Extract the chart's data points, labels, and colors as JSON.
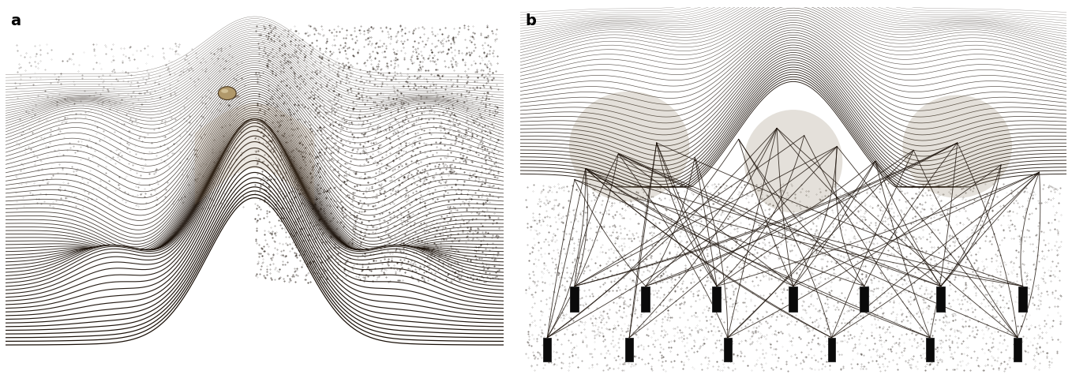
{
  "fig_width": 13.58,
  "fig_height": 4.85,
  "dpi": 100,
  "bg_color": "#ffffff",
  "panel_a_label": "a",
  "panel_b_label": "b",
  "label_fontsize": 14,
  "label_fontweight": "bold",
  "line_color": "#1a1008",
  "stipple_color": "#1a1008",
  "rope_color": "#1a1008",
  "peg_color": "#0a0a0a",
  "bg_light": "#f8f4ee",
  "bg_dark": "#c8b898",
  "shadow_color": "#5a4a30"
}
